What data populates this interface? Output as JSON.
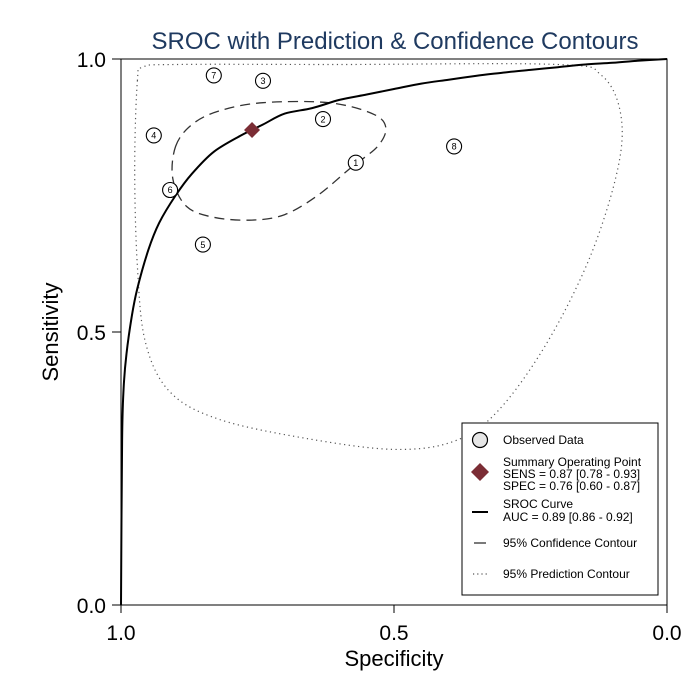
{
  "chart_data": {
    "type": "scatter",
    "title": "SROC with Prediction & Confidence Contours",
    "xlabel": "Specificity",
    "ylabel": "Sensitivity",
    "xlim": [
      1.0,
      0.0
    ],
    "ylim": [
      0.0,
      1.0
    ],
    "x_reversed": true,
    "x_ticks": [
      "1.0",
      "0.5",
      "0.0"
    ],
    "y_ticks": [
      "0.0",
      "0.5",
      "1.0"
    ],
    "grid": false,
    "legend_position": "bottom-right",
    "observed_points": [
      {
        "label": "1",
        "spec": 0.57,
        "sens": 0.81
      },
      {
        "label": "2",
        "spec": 0.63,
        "sens": 0.89
      },
      {
        "label": "3",
        "spec": 0.74,
        "sens": 0.96
      },
      {
        "label": "4",
        "spec": 0.94,
        "sens": 0.86
      },
      {
        "label": "5",
        "spec": 0.85,
        "sens": 0.66
      },
      {
        "label": "6",
        "spec": 0.91,
        "sens": 0.76
      },
      {
        "label": "7",
        "spec": 0.83,
        "sens": 0.97
      },
      {
        "label": "8",
        "spec": 0.39,
        "sens": 0.84
      }
    ],
    "summary_point": {
      "spec": 0.76,
      "sens": 0.87,
      "color": "#7b2d35"
    },
    "sroc_curve": {
      "auc": 0.89,
      "points": [
        [
          1.0,
          0.0
        ],
        [
          0.998,
          0.3
        ],
        [
          0.995,
          0.4
        ],
        [
          0.99,
          0.46
        ],
        [
          0.98,
          0.53
        ],
        [
          0.97,
          0.58
        ],
        [
          0.95,
          0.65
        ],
        [
          0.93,
          0.7
        ],
        [
          0.9,
          0.75
        ],
        [
          0.87,
          0.79
        ],
        [
          0.83,
          0.83
        ],
        [
          0.78,
          0.86
        ],
        [
          0.74,
          0.88
        ],
        [
          0.7,
          0.9
        ],
        [
          0.65,
          0.91
        ],
        [
          0.6,
          0.925
        ],
        [
          0.55,
          0.935
        ],
        [
          0.5,
          0.945
        ],
        [
          0.45,
          0.955
        ],
        [
          0.4,
          0.962
        ],
        [
          0.35,
          0.969
        ],
        [
          0.3,
          0.975
        ],
        [
          0.25,
          0.98
        ],
        [
          0.2,
          0.985
        ],
        [
          0.15,
          0.99
        ],
        [
          0.1,
          0.993
        ],
        [
          0.05,
          0.997
        ],
        [
          0.0,
          1.0
        ]
      ]
    },
    "confidence_contour": {
      "points": [
        [
          0.9,
          0.84
        ],
        [
          0.87,
          0.88
        ],
        [
          0.82,
          0.905
        ],
        [
          0.74,
          0.92
        ],
        [
          0.62,
          0.92
        ],
        [
          0.54,
          0.9
        ],
        [
          0.515,
          0.875
        ],
        [
          0.53,
          0.84
        ],
        [
          0.58,
          0.8
        ],
        [
          0.64,
          0.75
        ],
        [
          0.7,
          0.715
        ],
        [
          0.76,
          0.705
        ],
        [
          0.83,
          0.71
        ],
        [
          0.88,
          0.73
        ],
        [
          0.905,
          0.78
        ]
      ]
    },
    "prediction_contour": {
      "points": [
        [
          0.97,
          0.96
        ],
        [
          0.96,
          0.985
        ],
        [
          0.9,
          0.99
        ],
        [
          0.6,
          0.99
        ],
        [
          0.2,
          0.99
        ],
        [
          0.12,
          0.97
        ],
        [
          0.085,
          0.9
        ],
        [
          0.09,
          0.8
        ],
        [
          0.14,
          0.64
        ],
        [
          0.22,
          0.48
        ],
        [
          0.31,
          0.355
        ],
        [
          0.39,
          0.3
        ],
        [
          0.5,
          0.285
        ],
        [
          0.66,
          0.305
        ],
        [
          0.82,
          0.34
        ],
        [
          0.91,
          0.39
        ],
        [
          0.955,
          0.48
        ],
        [
          0.97,
          0.62
        ],
        [
          0.975,
          0.8
        ]
      ]
    },
    "legend": {
      "observed": "Observed Data",
      "summary_title": "Summary Operating Point",
      "summary_sens": "SENS = 0.87 [0.78 - 0.93]",
      "summary_spec": "SPEC = 0.76 [0.60 - 0.87]",
      "curve_title": "SROC Curve",
      "curve_auc": "AUC = 0.89 [0.86 - 0.92]",
      "confidence": "95% Confidence Contour",
      "prediction": "95% Prediction Contour"
    }
  }
}
